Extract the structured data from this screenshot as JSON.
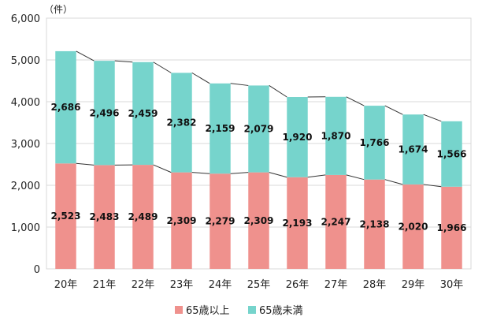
{
  "chart_data": {
    "type": "bar",
    "stacked": true,
    "unit_label": "（件）",
    "categories": [
      "20年",
      "21年",
      "22年",
      "23年",
      "24年",
      "25年",
      "26年",
      "27年",
      "28年",
      "29年",
      "30年"
    ],
    "series": [
      {
        "name": "65歳以上",
        "color": "#ef918d",
        "values": [
          2523,
          2483,
          2489,
          2309,
          2279,
          2309,
          2193,
          2247,
          2138,
          2020,
          1966
        ],
        "labels": [
          "2,523",
          "2,483",
          "2,489",
          "2,309",
          "2,279",
          "2,309",
          "2,193",
          "2,247",
          "2,138",
          "2,020",
          "1,966"
        ]
      },
      {
        "name": "65歳未満",
        "color": "#76d4cc",
        "values": [
          2686,
          2496,
          2459,
          2382,
          2159,
          2079,
          1920,
          1870,
          1766,
          1674,
          1566
        ],
        "labels": [
          "2,686",
          "2,496",
          "2,459",
          "2,382",
          "2,159",
          "2,079",
          "1,920",
          "1,870",
          "1,766",
          "1,674",
          "1,566"
        ]
      }
    ],
    "ylim": [
      0,
      6000
    ],
    "yticks": [
      0,
      1000,
      2000,
      3000,
      4000,
      5000,
      6000
    ],
    "ytick_labels": [
      "0",
      "1,000",
      "2,000",
      "3,000",
      "4,000",
      "5,000",
      "6,000"
    ],
    "series_lines": true,
    "legend_position": "bottom"
  }
}
